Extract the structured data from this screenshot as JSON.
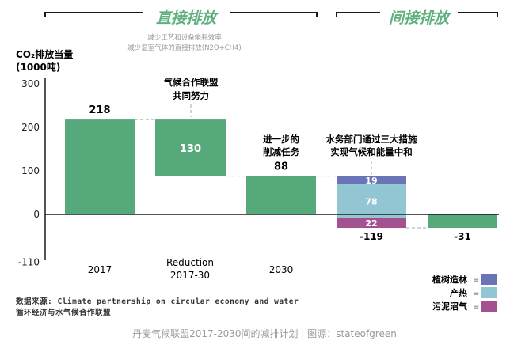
{
  "chart_data": {
    "type": "bar",
    "subtype": "waterfall",
    "ylabel_line1": "CO₂排放当量",
    "ylabel_line2": "(1000吨)",
    "ylim": [
      -110,
      300
    ],
    "yticks": [
      300,
      200,
      100,
      0,
      -110
    ],
    "section_direct": "直接排放",
    "section_indirect": "间接排放",
    "direct_note_line1": "减少工艺和设备能耗效率",
    "direct_note_line2": "减少温室气体的直接排放(N2O+CH4)",
    "categories": [
      "2017",
      "Reduction\n2017-30",
      "2030",
      "",
      ""
    ],
    "bars": [
      {
        "category": "2017",
        "start": 0,
        "end": 218,
        "label": "218",
        "label_pos": "above",
        "color": "#55a97b"
      },
      {
        "category": "Reduction 2017-30",
        "start": 218,
        "end": 88,
        "label": "130",
        "label_pos": "inside",
        "color": "#55a97b"
      },
      {
        "category": "2030",
        "start": 0,
        "end": 88,
        "label": "88",
        "label_pos": "above",
        "color": "#55a97b"
      },
      {
        "category": "indirect",
        "stacked": true,
        "total_label": "-119",
        "segments": [
          {
            "name": "植树造林",
            "value": 19,
            "color": "#6a75b7"
          },
          {
            "name": "产热",
            "value": 78,
            "color": "#93c6d3"
          },
          {
            "name": "污泥沼气",
            "value": 22,
            "color": "#a4528f"
          }
        ]
      },
      {
        "category": "net",
        "start": 0,
        "end": -31,
        "label": "-31",
        "label_pos": "below",
        "color": "#55a97b"
      }
    ],
    "annotations": [
      {
        "line1": "气候合作联盟",
        "line2": "共同努力"
      },
      {
        "line1": "进一步的",
        "line2": "削减任务"
      },
      {
        "line1": "水务部门通过三大措施",
        "line2": "实现气候和能量中和"
      }
    ],
    "legend": {
      "position": "bottom-right",
      "items": [
        {
          "name": "植树造林",
          "color": "#6a75b7"
        },
        {
          "name": "产热",
          "color": "#93c6d3"
        },
        {
          "name": "污泥沼气",
          "color": "#a4528f"
        }
      ]
    },
    "grid": false
  },
  "source_line1": "数据来源: Climate partnership on circular economy and water",
  "source_line2": "循环经济与水气候合作联盟",
  "caption": "丹麦气候联盟2017-2030间的减排计划 | 图源：stateofgreen"
}
